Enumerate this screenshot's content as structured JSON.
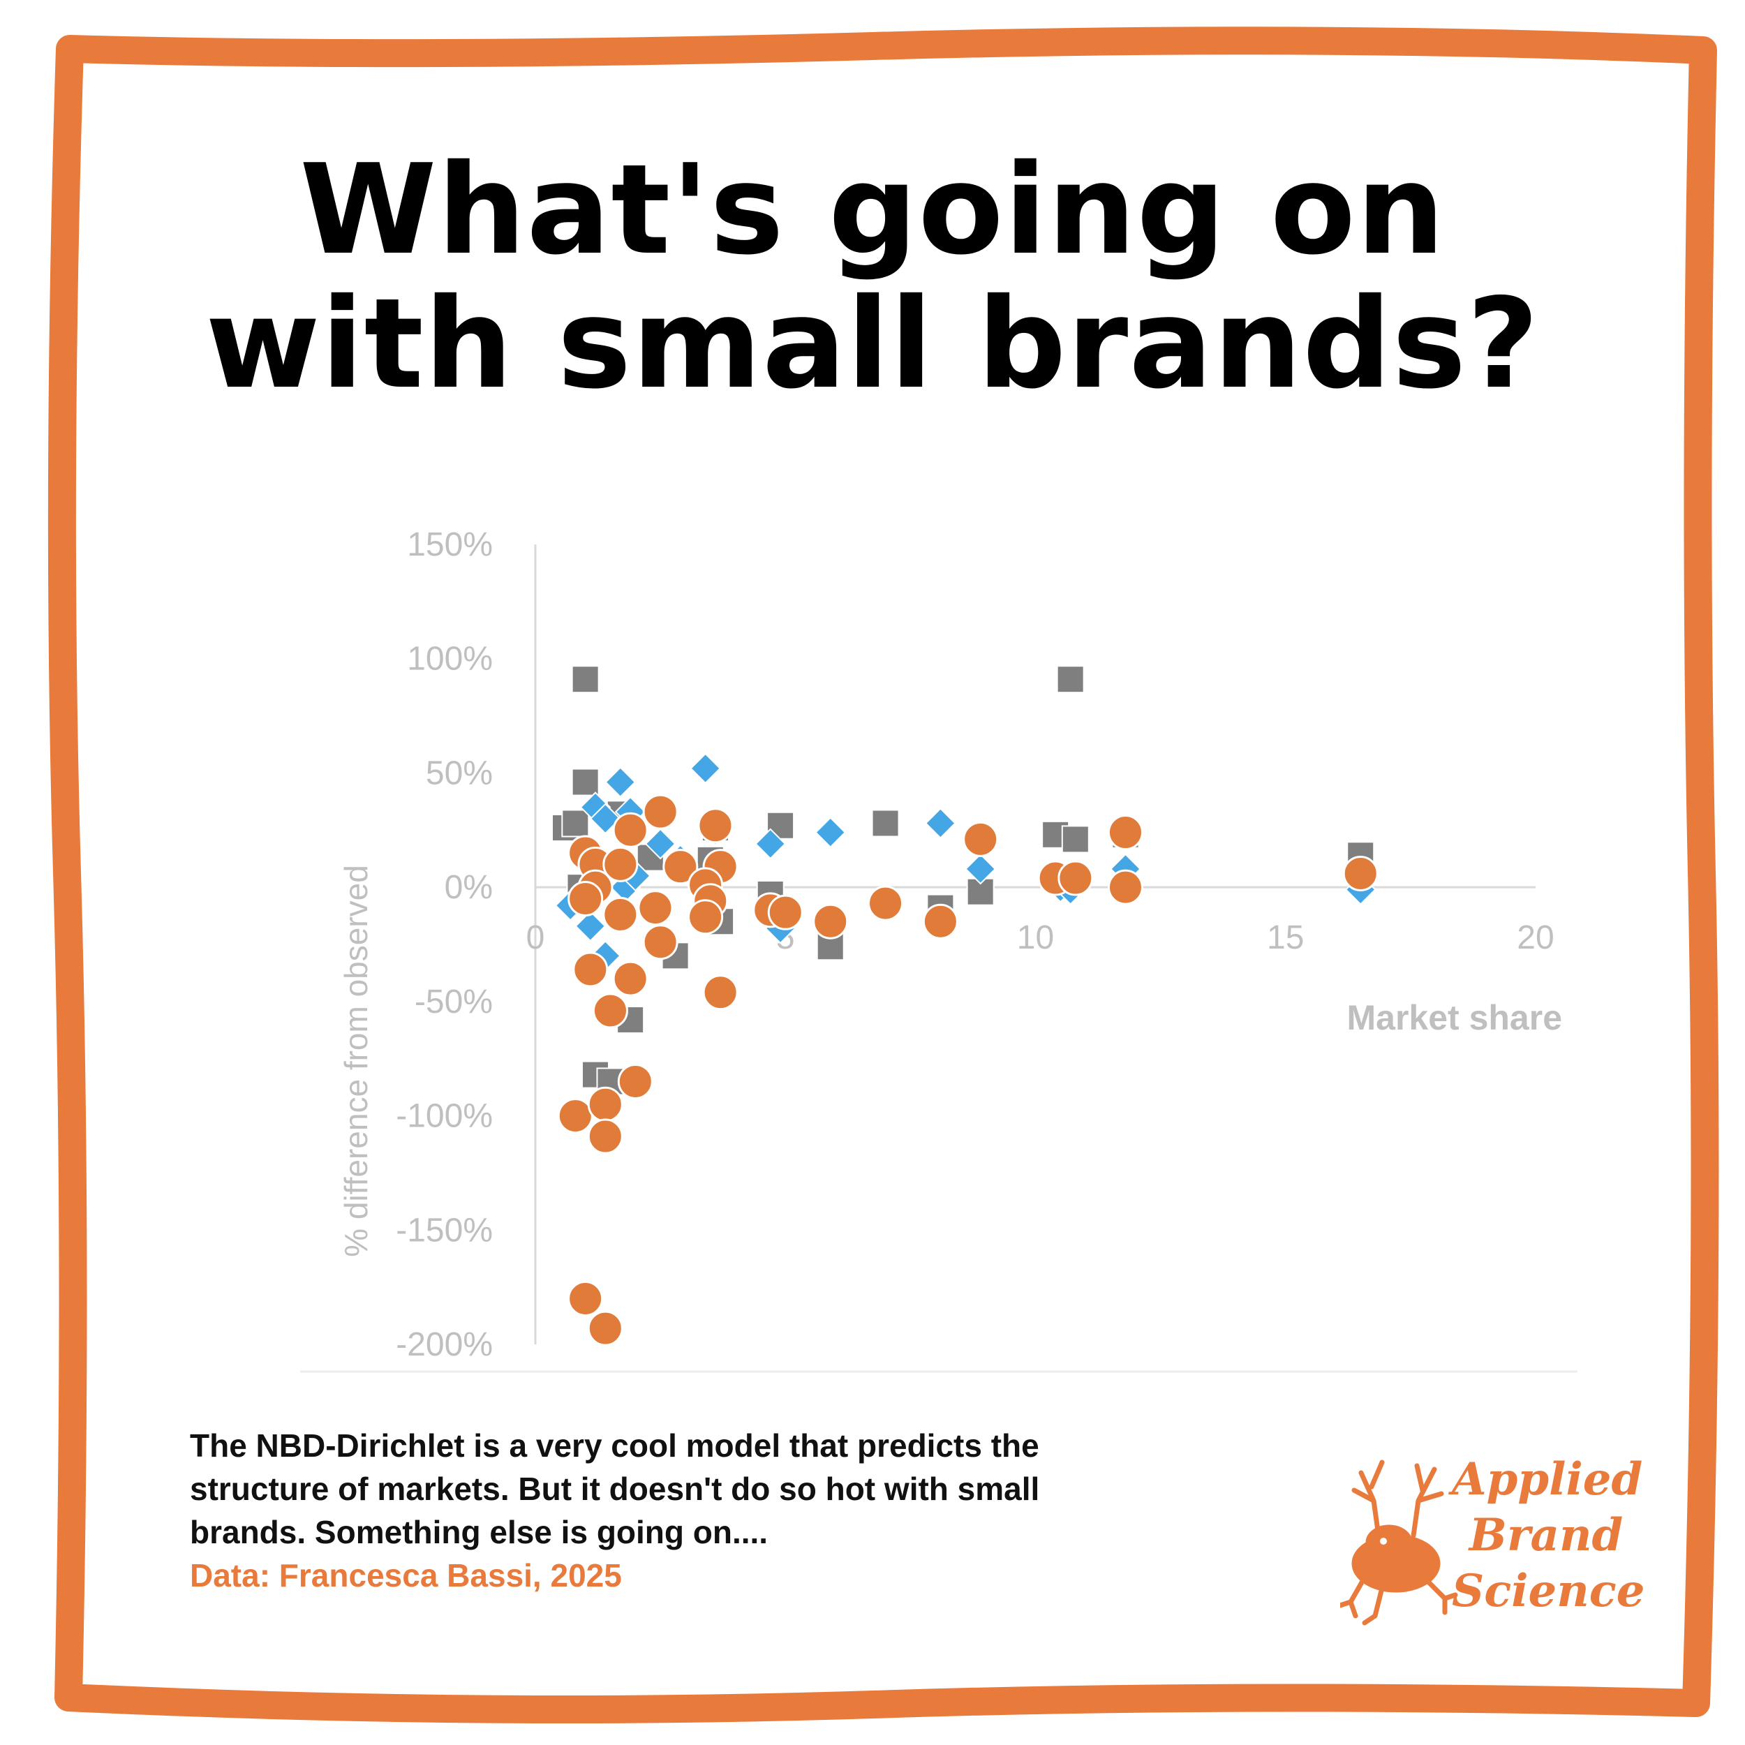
{
  "title": {
    "line1": "What's going on",
    "line2": "with small brands?"
  },
  "caption": {
    "text": "The NBD-Dirichlet is a very cool model that predicts the structure of markets. But it doesn't do so hot with small brands. Something else is going on....",
    "source": "Data: Francesca Bassi, 2025"
  },
  "logo": {
    "line1": "Applied",
    "line2": "Brand",
    "line3": "Science",
    "icon": "deer-frog-icon"
  },
  "colors": {
    "frame": "#E87A3C",
    "accent": "#E87A3C",
    "grid": "#D9D9D9",
    "axis_text": "#BFBFBF",
    "square": "#7F7F7F",
    "diamond": "#45A6E6",
    "circle": "#E07B3A"
  },
  "chart_data": {
    "type": "scatter",
    "title": "",
    "xlabel": "Market share",
    "ylabel": "% difference from observed",
    "xlim": [
      0,
      20
    ],
    "ylim": [
      -200,
      150
    ],
    "x_ticks": [
      "0",
      "5",
      "10",
      "15",
      "20"
    ],
    "y_ticks": [
      "150%",
      "100%",
      "50%",
      "0%",
      "-50%",
      "-100%",
      "-150%",
      "-200%"
    ],
    "x_tick_values": [
      0,
      5,
      10,
      15,
      20
    ],
    "y_tick_values": [
      150,
      100,
      50,
      0,
      -50,
      -100,
      -150,
      -200
    ],
    "grid": false,
    "legend": "none",
    "series": [
      {
        "marker": "square",
        "points": [
          {
            "x": 1.0,
            "y": 91
          },
          {
            "x": 10.7,
            "y": 91
          },
          {
            "x": 1.0,
            "y": 46
          },
          {
            "x": 0.6,
            "y": 26
          },
          {
            "x": 0.8,
            "y": 28
          },
          {
            "x": 1.7,
            "y": 32
          },
          {
            "x": 2.3,
            "y": 13
          },
          {
            "x": 3.5,
            "y": 12
          },
          {
            "x": 3.6,
            "y": 26
          },
          {
            "x": 4.9,
            "y": 27
          },
          {
            "x": 7.0,
            "y": 28
          },
          {
            "x": 10.4,
            "y": 23
          },
          {
            "x": 10.8,
            "y": 21
          },
          {
            "x": 11.8,
            "y": 23
          },
          {
            "x": 16.5,
            "y": 14
          },
          {
            "x": 0.9,
            "y": 0
          },
          {
            "x": 4.7,
            "y": -3
          },
          {
            "x": 8.9,
            "y": -2
          },
          {
            "x": 8.1,
            "y": -9
          },
          {
            "x": 3.7,
            "y": -15
          },
          {
            "x": 2.8,
            "y": -30
          },
          {
            "x": 5.9,
            "y": -26
          },
          {
            "x": 1.9,
            "y": -58
          },
          {
            "x": 1.2,
            "y": -82
          },
          {
            "x": 1.5,
            "y": -85
          }
        ]
      },
      {
        "marker": "diamond",
        "points": [
          {
            "x": 1.7,
            "y": 46
          },
          {
            "x": 3.4,
            "y": 52
          },
          {
            "x": 1.2,
            "y": 35
          },
          {
            "x": 1.4,
            "y": 30
          },
          {
            "x": 1.9,
            "y": 33
          },
          {
            "x": 2.5,
            "y": 19
          },
          {
            "x": 3.6,
            "y": 25
          },
          {
            "x": 4.7,
            "y": 19
          },
          {
            "x": 5.9,
            "y": 24
          },
          {
            "x": 8.1,
            "y": 28
          },
          {
            "x": 8.9,
            "y": 8
          },
          {
            "x": 11.8,
            "y": 8
          },
          {
            "x": 0.7,
            "y": -8
          },
          {
            "x": 1.1,
            "y": -17
          },
          {
            "x": 1.4,
            "y": -30
          },
          {
            "x": 1.8,
            "y": 0
          },
          {
            "x": 2.0,
            "y": 5
          },
          {
            "x": 2.9,
            "y": 12
          },
          {
            "x": 4.9,
            "y": -18
          },
          {
            "x": 10.5,
            "y": 0
          },
          {
            "x": 10.7,
            "y": -1
          },
          {
            "x": 16.5,
            "y": -1
          }
        ]
      },
      {
        "marker": "circle",
        "points": [
          {
            "x": 2.5,
            "y": 33
          },
          {
            "x": 3.6,
            "y": 27
          },
          {
            "x": 1.9,
            "y": 25
          },
          {
            "x": 1.0,
            "y": 15
          },
          {
            "x": 1.2,
            "y": 10
          },
          {
            "x": 1.7,
            "y": 10
          },
          {
            "x": 2.9,
            "y": 9
          },
          {
            "x": 3.7,
            "y": 9
          },
          {
            "x": 8.9,
            "y": 21
          },
          {
            "x": 11.8,
            "y": 24
          },
          {
            "x": 16.5,
            "y": 6
          },
          {
            "x": 10.4,
            "y": 4
          },
          {
            "x": 10.8,
            "y": 4
          },
          {
            "x": 1.2,
            "y": 0
          },
          {
            "x": 1.0,
            "y": -5
          },
          {
            "x": 3.4,
            "y": 1
          },
          {
            "x": 3.5,
            "y": -6
          },
          {
            "x": 2.4,
            "y": -9
          },
          {
            "x": 1.7,
            "y": -12
          },
          {
            "x": 3.4,
            "y": -13
          },
          {
            "x": 4.7,
            "y": -10
          },
          {
            "x": 5.0,
            "y": -11
          },
          {
            "x": 5.9,
            "y": -15
          },
          {
            "x": 7.0,
            "y": -7
          },
          {
            "x": 8.1,
            "y": -15
          },
          {
            "x": 11.8,
            "y": 0
          },
          {
            "x": 2.5,
            "y": -24
          },
          {
            "x": 1.1,
            "y": -36
          },
          {
            "x": 1.9,
            "y": -40
          },
          {
            "x": 3.7,
            "y": -46
          },
          {
            "x": 1.5,
            "y": -54
          },
          {
            "x": 2.0,
            "y": -85
          },
          {
            "x": 0.8,
            "y": -100
          },
          {
            "x": 1.4,
            "y": -95
          },
          {
            "x": 1.4,
            "y": -109
          },
          {
            "x": 1.0,
            "y": -180
          },
          {
            "x": 1.4,
            "y": -193
          }
        ]
      }
    ]
  }
}
